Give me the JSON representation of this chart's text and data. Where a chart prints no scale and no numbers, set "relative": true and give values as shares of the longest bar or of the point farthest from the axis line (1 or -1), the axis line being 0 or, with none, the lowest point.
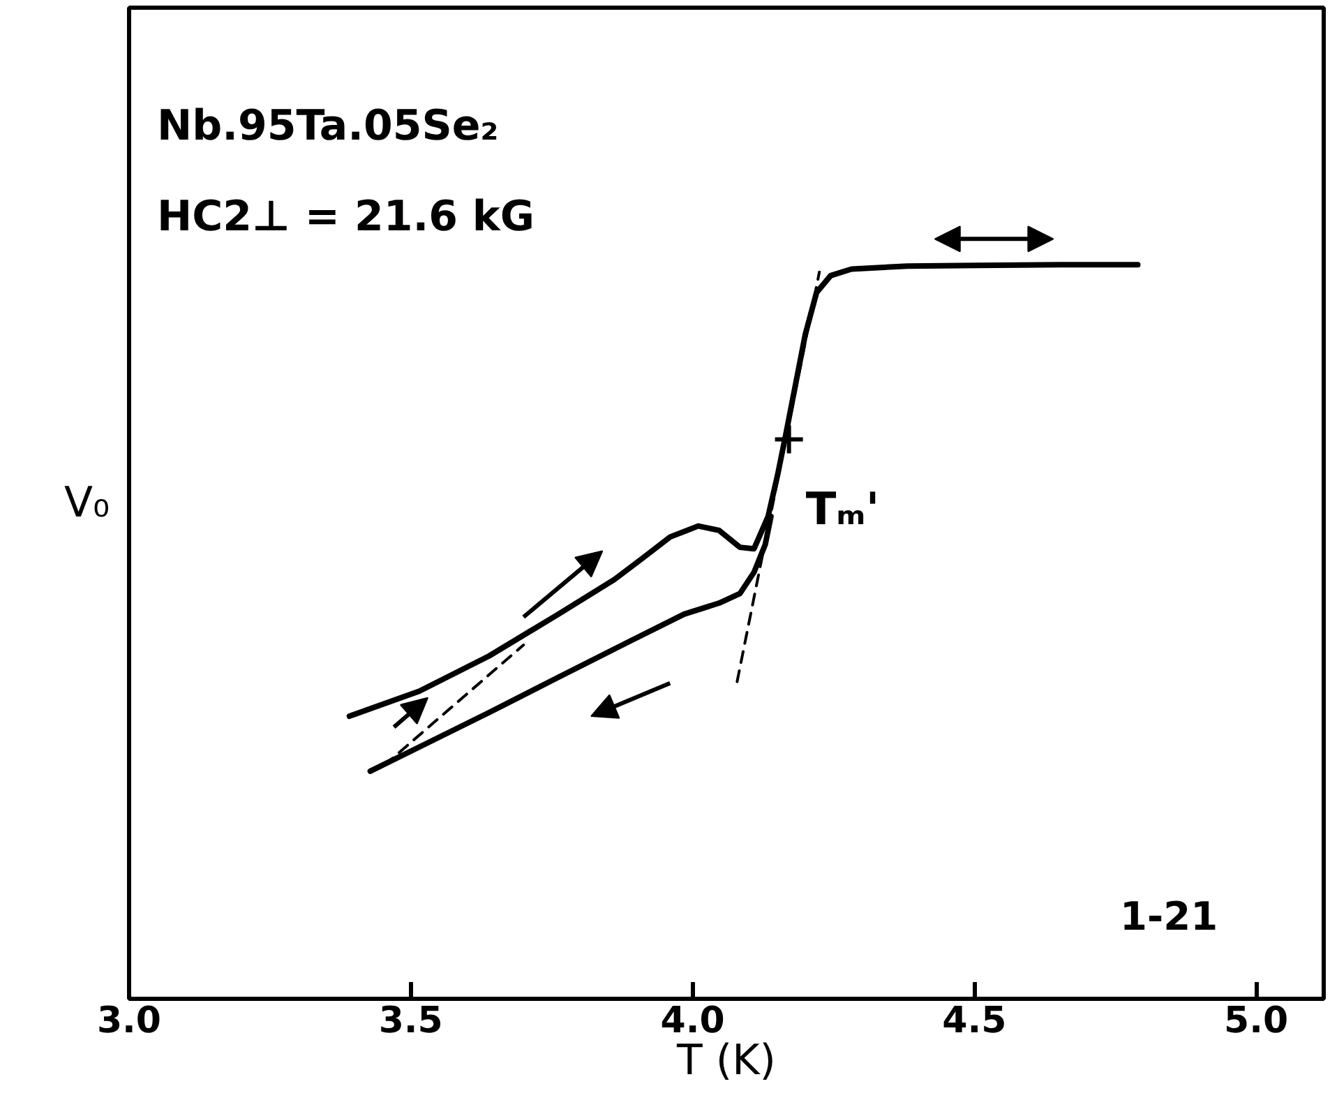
{
  "chart_data": {
    "type": "line",
    "relative": true,
    "xlabel": "T (K)",
    "ylabel": "V₀",
    "xlim": [
      3.0,
      5.12
    ],
    "xticks": [
      {
        "value": 3.0,
        "label": "3.0"
      },
      {
        "value": 3.5,
        "label": "3.5"
      },
      {
        "value": 4.0,
        "label": "4.0"
      },
      {
        "value": 4.5,
        "label": "4.5"
      },
      {
        "value": 5.0,
        "label": "5.0"
      }
    ],
    "grid": false,
    "marker": "none",
    "line_style": "solid",
    "series": [
      {
        "color": "#000000",
        "x": [
          3.391,
          3.515,
          3.639,
          3.762,
          3.861,
          3.911,
          3.96,
          4.01,
          4.047,
          4.084,
          4.109,
          4.134,
          4.151,
          4.166,
          4.183,
          4.2,
          4.22,
          4.245,
          4.282,
          4.381,
          4.505,
          4.653,
          4.79
        ],
        "values": [
          0.385,
          0.419,
          0.467,
          0.524,
          0.571,
          0.6,
          0.629,
          0.644,
          0.638,
          0.615,
          0.613,
          0.657,
          0.714,
          0.771,
          0.838,
          0.905,
          0.962,
          0.985,
          0.994,
          0.998,
          0.999,
          1.0,
          1.0
        ]
      },
      {
        "color": "#000000",
        "x": [
          3.428,
          3.515,
          3.639,
          3.762,
          3.886,
          3.985,
          4.047,
          4.084,
          4.109,
          4.129,
          4.139
        ],
        "values": [
          0.31,
          0.343,
          0.39,
          0.438,
          0.486,
          0.524,
          0.539,
          0.552,
          0.581,
          0.619,
          0.657
        ]
      },
      {
        "color": "#000000",
        "line_style": "dashed",
        "x": [
          4.079,
          4.225
        ],
        "values": [
          0.432,
          0.99
        ]
      },
      {
        "color": "#000000",
        "line_style": "dashed",
        "x": [
          3.453,
          3.7
        ],
        "values": [
          0.318,
          0.482
        ]
      },
      {
        "type": "scatter",
        "marker": "cross",
        "color": "#000000",
        "x": [
          4.171
        ],
        "values": [
          0.762
        ]
      }
    ],
    "annotations": [
      "Nb.95Ta.05Se₂",
      "HC2⊥ = 21.6 kG",
      {
        "text": "Tₘ'",
        "x": 4.171,
        "y": 0.762
      },
      "1-21"
    ]
  }
}
